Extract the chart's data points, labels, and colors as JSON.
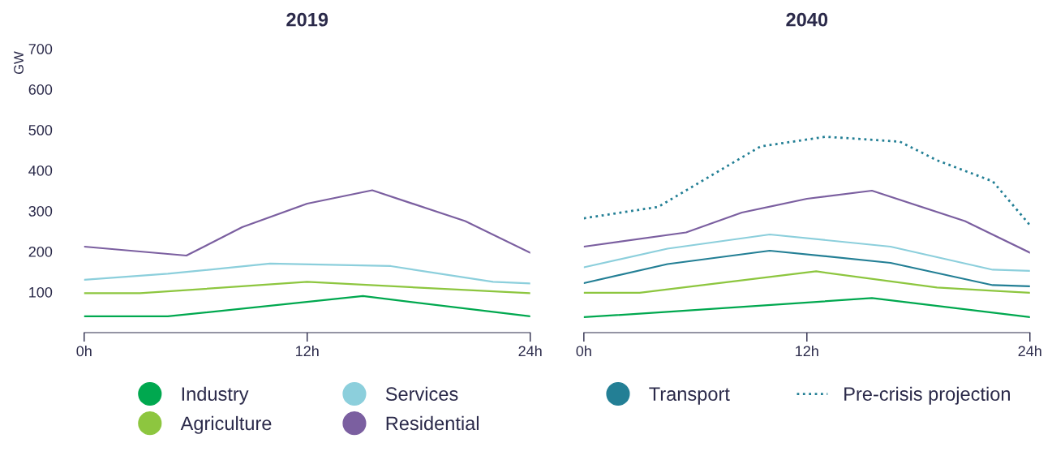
{
  "chart_data": [
    {
      "type": "line",
      "title": "2019",
      "ylabel": "GW",
      "xlim": [
        0,
        24
      ],
      "ylim": [
        0,
        700
      ],
      "xticks": [
        {
          "value": 0,
          "label": "0h"
        },
        {
          "value": 12,
          "label": "12h"
        },
        {
          "value": 24,
          "label": "24h"
        }
      ],
      "yticks": [
        100,
        200,
        300,
        400,
        500,
        600,
        700
      ],
      "grid": false,
      "legend": "bottom",
      "marker": "none",
      "series": [
        {
          "name": "Industry",
          "color": "#00a84f",
          "x": [
            0,
            4.5,
            15,
            24
          ],
          "values": [
            40,
            40,
            90,
            40
          ]
        },
        {
          "name": "Agriculture",
          "color": "#8dc63f",
          "x": [
            0,
            3,
            12,
            24
          ],
          "values": [
            97,
            97,
            125,
            97
          ]
        },
        {
          "name": "Services",
          "color": "#8ccfdc",
          "x": [
            0,
            4.5,
            10,
            16.5,
            22,
            24
          ],
          "values": [
            130,
            145,
            170,
            164,
            125,
            121
          ]
        },
        {
          "name": "Residential",
          "color": "#7b5fa0",
          "x": [
            0,
            5.5,
            8.5,
            12,
            15.5,
            20.5,
            24
          ],
          "values": [
            212,
            190,
            260,
            318,
            351,
            275,
            197
          ]
        }
      ]
    },
    {
      "type": "line",
      "title": "2040",
      "xlim": [
        0,
        24
      ],
      "ylim": [
        0,
        700
      ],
      "xticks": [
        {
          "value": 0,
          "label": "0h"
        },
        {
          "value": 12,
          "label": "12h"
        },
        {
          "value": 24,
          "label": "24h"
        }
      ],
      "yticks": [
        100,
        200,
        300,
        400,
        500,
        600,
        700
      ],
      "tick_labels": "x",
      "grid": false,
      "legend": "bottom",
      "marker": "none",
      "series": [
        {
          "name": "Industry",
          "color": "#00a84f",
          "x": [
            0,
            4.5,
            15.5,
            24
          ],
          "values": [
            38,
            51,
            85,
            38
          ]
        },
        {
          "name": "Agriculture",
          "color": "#8dc63f",
          "x": [
            0,
            3,
            12.5,
            19,
            22,
            24
          ],
          "values": [
            98,
            98,
            151,
            111,
            103,
            98
          ]
        },
        {
          "name": "Transport",
          "color": "#237f95",
          "x": [
            0,
            4.5,
            10,
            16.5,
            22,
            24
          ],
          "values": [
            122,
            169,
            202,
            172,
            117,
            114
          ]
        },
        {
          "name": "Services",
          "color": "#8ccfdc",
          "x": [
            0,
            4.5,
            10,
            16.5,
            22,
            24
          ],
          "values": [
            161,
            207,
            242,
            212,
            155,
            152
          ]
        },
        {
          "name": "Residential",
          "color": "#7b5fa0",
          "x": [
            0,
            5.5,
            8.5,
            12,
            15.5,
            20.5,
            24
          ],
          "values": [
            212,
            247,
            296,
            330,
            350,
            275,
            197
          ]
        },
        {
          "name": "Pre-crisis projection",
          "color": "#237f95",
          "line_style": "dotted",
          "x": [
            0,
            4,
            9.5,
            13,
            17,
            19,
            22,
            24
          ],
          "values": [
            282,
            310,
            459,
            483,
            471,
            425,
            373,
            265
          ]
        }
      ]
    }
  ]
}
